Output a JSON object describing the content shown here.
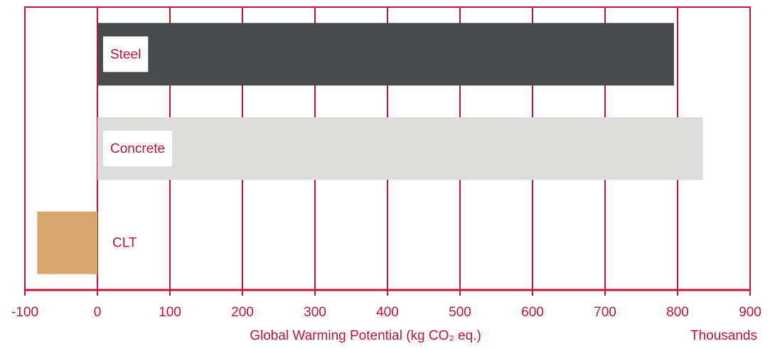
{
  "chart_data": {
    "type": "barh",
    "categories": [
      "Steel",
      "Concrete",
      "CLT"
    ],
    "values": [
      795,
      835,
      -83
    ],
    "colors": [
      "#474b4b",
      "#dcdcda",
      "#d8a66c"
    ],
    "xlim": [
      -100,
      900
    ],
    "xticks": [
      -100,
      0,
      100,
      200,
      300,
      400,
      500,
      600,
      700,
      800,
      900
    ],
    "xlabel": "Global Warming Potential (kg CO₂ eq.)",
    "xunit": "Thousands",
    "grid": true
  }
}
